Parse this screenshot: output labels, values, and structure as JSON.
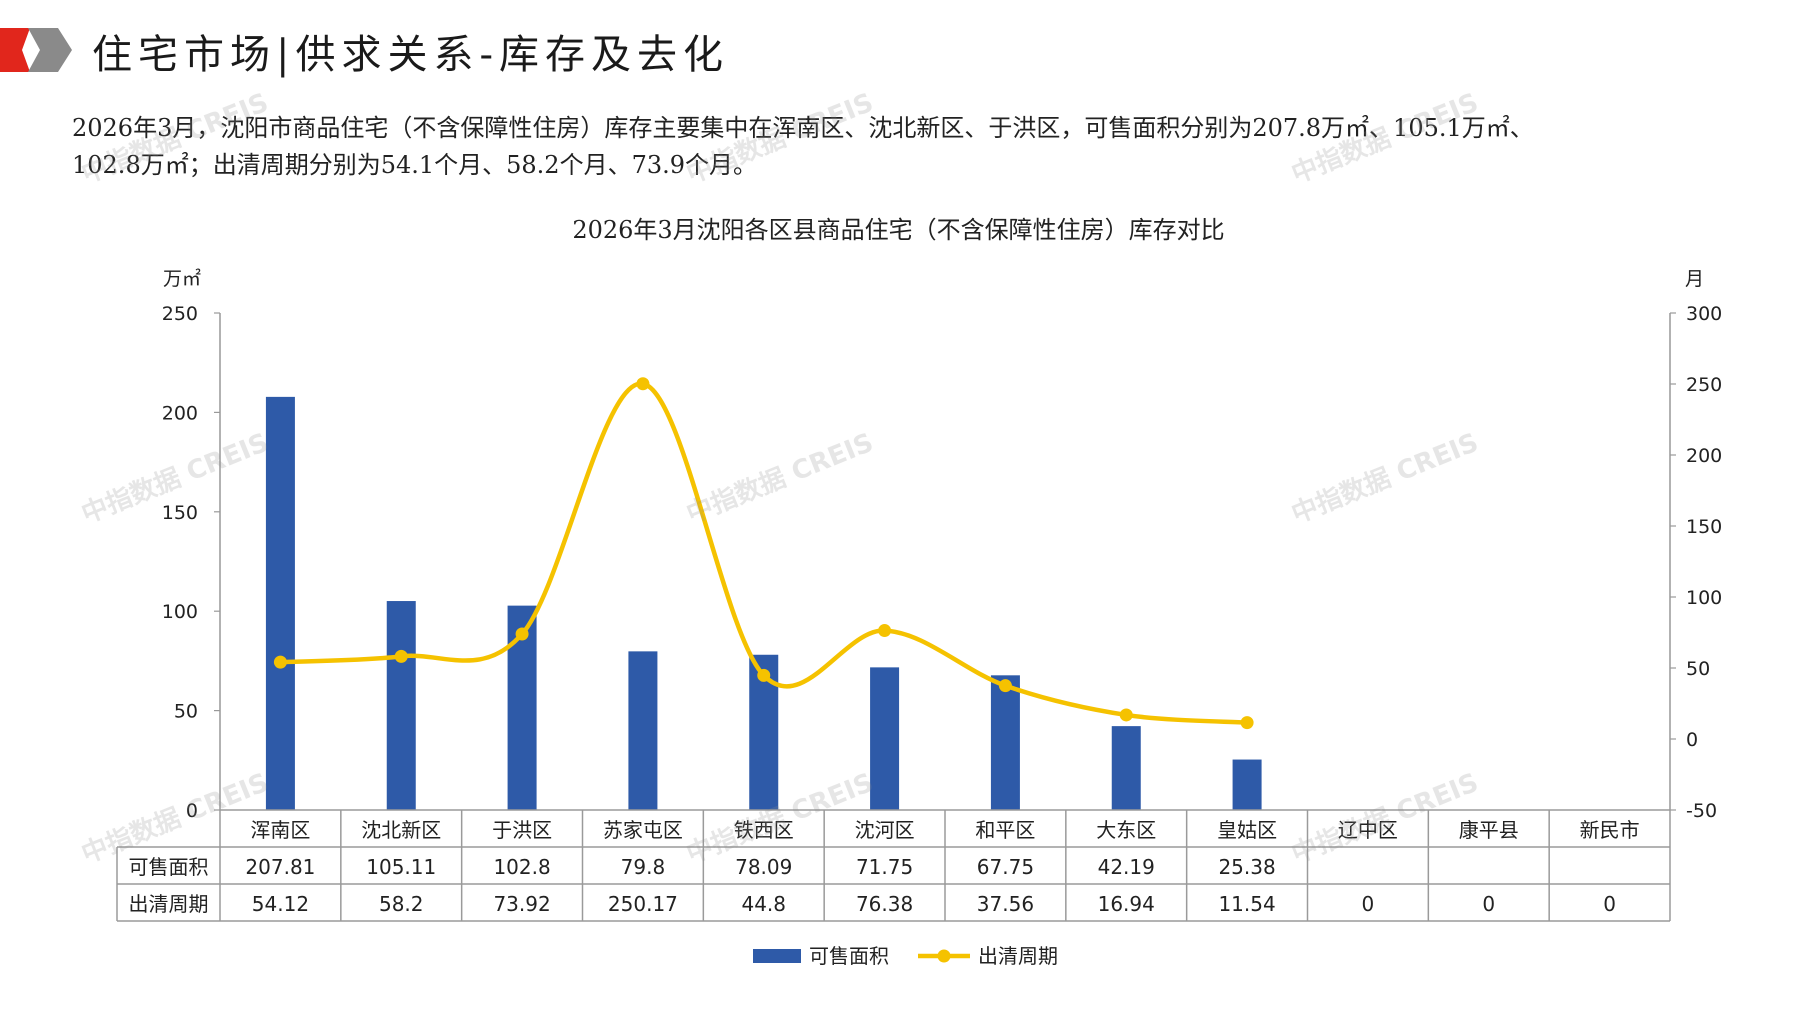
{
  "header": {
    "title": "住宅市场|供求关系-库存及去化"
  },
  "summary": {
    "line1": "2026年3月，沈阳市商品住宅（不含保障性住房）库存主要集中在浑南区、沈北新区、于洪区，可售面积分别为207.8万㎡、105.1万㎡、",
    "line2": "102.8万㎡；出清周期分别为54.1个月、58.2个月、73.9个月。"
  },
  "watermark": "中指数据 CREIS",
  "colors": {
    "bar": "#2e5aa8",
    "line": "#f5c200",
    "brand_red": "#e1261c",
    "brand_grey": "#8a8a8a"
  },
  "chart_data": {
    "type": "bar",
    "title": "2026年3月沈阳各区县商品住宅（不含保障性住房）库存对比",
    "left_unit": "万㎡",
    "right_unit": "月",
    "categories": [
      "浑南区",
      "沈北新区",
      "于洪区",
      "苏家屯区",
      "铁西区",
      "沈河区",
      "和平区",
      "大东区",
      "皇姑区",
      "辽中区",
      "康平县",
      "新民市"
    ],
    "y_left": {
      "min": 0,
      "max": 250,
      "step": 50,
      "ticks": [
        "0",
        "50",
        "100",
        "150",
        "200",
        "250"
      ]
    },
    "y_right": {
      "min": -50,
      "max": 300,
      "step": 50,
      "ticks": [
        "-50",
        "0",
        "50",
        "100",
        "150",
        "200",
        "250",
        "300"
      ]
    },
    "series": [
      {
        "name": "可售面积",
        "type": "bar",
        "axis": "left",
        "values": [
          207.81,
          105.11,
          102.8,
          79.8,
          78.09,
          71.75,
          67.75,
          42.19,
          25.38,
          null,
          null,
          null
        ],
        "labels": [
          "207.81",
          "105.11",
          "102.8",
          "79.8",
          "78.09",
          "71.75",
          "67.75",
          "42.19",
          "25.38",
          "",
          "",
          ""
        ]
      },
      {
        "name": "出清周期",
        "type": "line",
        "axis": "right",
        "smooth": true,
        "values": [
          54.12,
          58.2,
          73.92,
          250.17,
          44.8,
          76.38,
          37.56,
          16.94,
          11.54,
          0,
          0,
          0
        ],
        "plotted_points": 9,
        "labels": [
          "54.12",
          "58.2",
          "73.92",
          "250.17",
          "44.8",
          "76.38",
          "37.56",
          "16.94",
          "11.54",
          "0",
          "0",
          "0"
        ]
      }
    ],
    "legend": "bottom-center"
  }
}
